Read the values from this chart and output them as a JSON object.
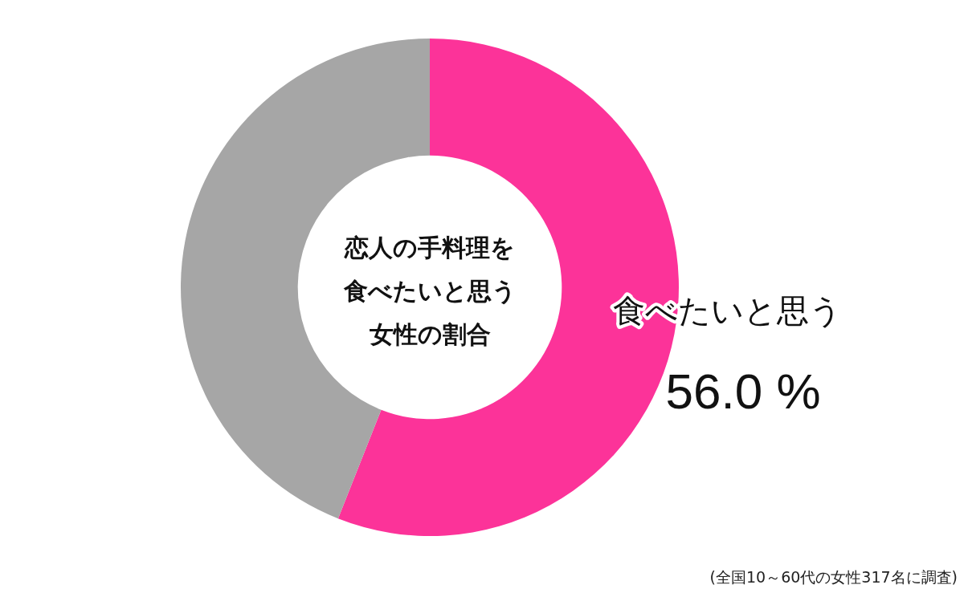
{
  "chart_data": {
    "type": "donut",
    "title": "恋人の手料理を食べたいと思う女性の割合",
    "categories": [
      "食べたいと思う",
      null
    ],
    "values": [
      56.0,
      44.0
    ],
    "colors": [
      "#fc3399",
      "#a6a6a6"
    ],
    "value_labels": [
      "56.0 %",
      null
    ],
    "annotations": [
      "(全国10～60代の女性317名に調査)"
    ]
  }
}
